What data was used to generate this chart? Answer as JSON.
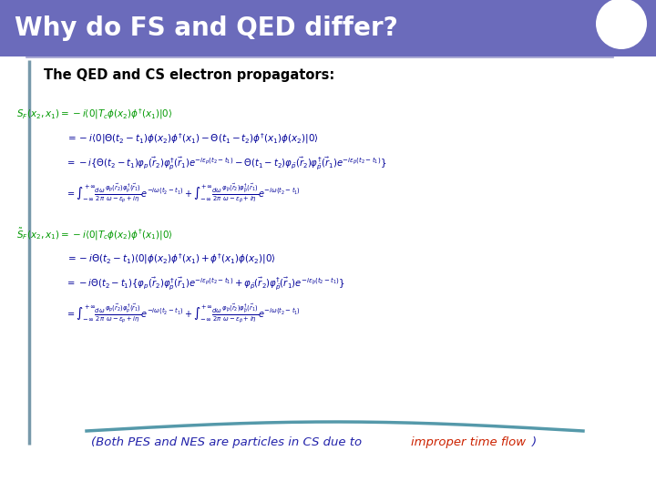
{
  "title": "Why do FS and QED differ?",
  "title_bg_color": "#6B6BBB",
  "title_text_color": "#ffffff",
  "subtitle": "The QED and CS electron propagators:",
  "subtitle_color": "#000000",
  "body_bg_color": "#ffffff",
  "border_color": "#7799aa",
  "bottom_note_blue": "(Both PES and NES are particles in CS due to ",
  "bottom_note_red": "improper time flow",
  "bottom_note_blue2": ")",
  "line1_color": "#009900",
  "line1": "$S_F(x_2, x_1) = -i\\langle 0|T_c\\phi(x_2)\\phi^{\\dagger}(x_1)|0\\rangle$",
  "line2_color": "#000099",
  "line2": "$= -i\\langle 0|\\Theta(t_2-t_1)\\phi(x_2)\\phi^{\\dagger}(x_1) - \\Theta(t_1-t_2)\\phi^{\\dagger}(x_1)\\phi(x_2)|0\\rangle$",
  "line3_color": "#000099",
  "line3": "$= -i\\{\\Theta(t_2-t_1)\\varphi_p(\\vec{r}_2)\\varphi_p^{\\dagger}(\\vec{r}_1)e^{-i\\epsilon_p(t_2-t_1)} - \\Theta(t_1-t_2)\\varphi_{\\bar{p}}(\\vec{r}_2)\\varphi_{\\bar{p}}^{\\dagger}(\\vec{r}_1)e^{-i\\epsilon_{\\bar{p}}(t_2-t_1)}\\}$",
  "line4_color": "#000099",
  "line4": "$= \\int_{-\\infty}^{+\\infty}\\frac{d\\omega}{2\\pi}\\frac{\\varphi_p(\\vec{r}_2)\\varphi_p^{\\dagger}(\\vec{r}_1)}{\\omega - \\epsilon_p + i\\eta}e^{-i\\omega(t_2-t_1)} + \\int_{-\\infty}^{+\\infty}\\frac{d\\omega}{2\\pi}\\frac{\\varphi_{\\bar{p}}(\\vec{r}_2)\\varphi_{\\bar{p}}^{\\dagger}(\\vec{r}_1)}{\\omega - \\epsilon_{\\bar{p}} + i\\eta}e^{-i\\omega(t_2-t_1)}$",
  "line5_color": "#009900",
  "line5": "$\\tilde{S}_F(x_2, x_1) = -i\\langle 0|T_c\\phi(x_2)\\phi^{\\dagger}(x_1)|0\\rangle$",
  "line6_color": "#000099",
  "line6": "$= -i\\Theta(t_2-t_1)\\langle 0|\\phi(x_2)\\phi^{\\dagger}(x_1) + \\phi^{\\dagger}(x_1)\\phi(x_2)|0\\rangle$",
  "line7_color": "#000099",
  "line7": "$= -i\\Theta(t_2-t_1)\\{\\varphi_p(\\vec{r}_2)\\varphi_p^{\\dagger}(\\vec{r}_1)e^{-i\\epsilon_p(t_2-t_1)} + \\varphi_{\\bar{p}}(\\vec{r}_2)\\varphi_{\\bar{p}}^{\\dagger}(\\vec{r}_1)e^{-i\\epsilon_{\\bar{p}}(t_2-t_1)}\\}$",
  "line8_color": "#000099",
  "line8": "$= \\int_{-\\infty}^{+\\infty}\\frac{d\\omega}{2\\pi}\\frac{\\varphi_p(\\vec{r}_2)\\varphi_p^{\\dagger}(\\vec{r}_1)}{\\omega - \\epsilon_p + i\\eta}e^{-i\\omega(t_2-t_1)} + \\int_{-\\infty}^{+\\infty}\\frac{d\\omega}{2\\pi}\\frac{\\varphi_{\\bar{p}}(\\vec{r}_2)\\varphi_{\\bar{p}}^{\\dagger}(\\vec{r}_1)}{\\omega - \\epsilon_{\\bar{p}} + i\\eta}e^{-i\\omega(t_2-t_1)}$",
  "figsize": [
    7.2,
    5.4
  ],
  "dpi": 100
}
